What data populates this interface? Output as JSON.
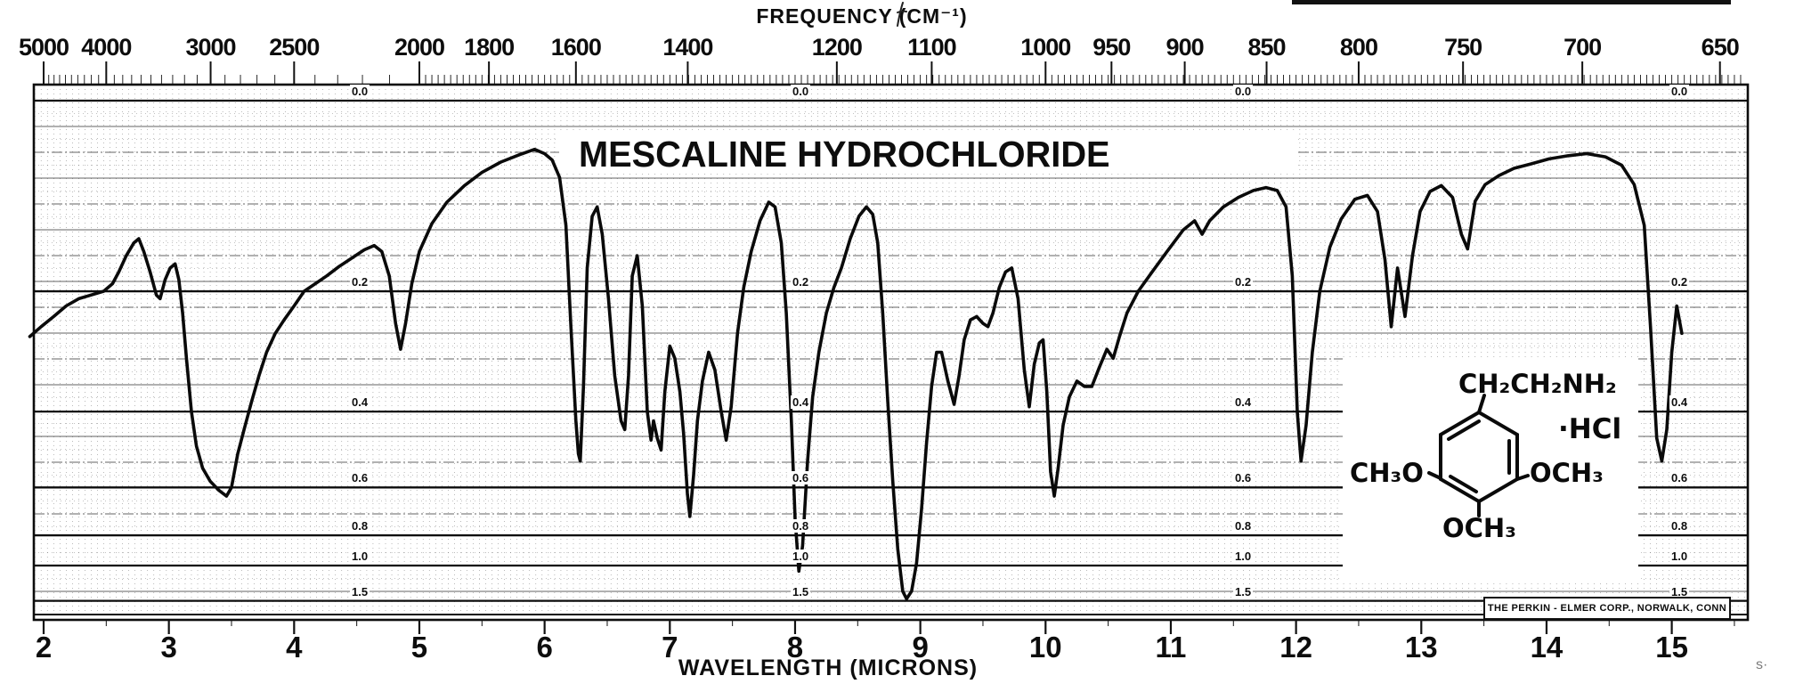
{
  "title": "MESCALINE HYDROCHLORIDE",
  "credit": "THE PERKIN - ELMER CORP., NORWALK, CONN",
  "frequency_axis": {
    "title": "FREQUENCY (CM⁻¹)",
    "tick_labels": [
      5000,
      4000,
      3000,
      2500,
      2000,
      1800,
      1600,
      1400,
      1200,
      1100,
      1000,
      950,
      900,
      850,
      800,
      750,
      700,
      650
    ]
  },
  "wavelength_axis": {
    "title": "WAVELENGTH (MICRONS)",
    "tick_labels": [
      2,
      3,
      4,
      5,
      6,
      7,
      8,
      9,
      10,
      11,
      12,
      13,
      14,
      15
    ]
  },
  "absorbance_axis": {
    "tick_labels": [
      "0.0",
      "0.2",
      "0.4",
      "0.6",
      "0.8",
      "1.0",
      "1.5"
    ]
  },
  "structure": {
    "chain": "CH₂CH₂NH₂",
    "salt": "·HCl",
    "left_substituent": "CH₃O",
    "right_substituent": "OCH₃",
    "bottom_substituent": "OCH₃"
  },
  "chart_data": {
    "type": "line",
    "title": "MESCALINE HYDROCHLORIDE",
    "x_top_axis": {
      "label": "FREQUENCY (CM⁻¹)",
      "tick_labels": [
        5000,
        4000,
        3000,
        2500,
        2000,
        1800,
        1600,
        1400,
        1200,
        1100,
        1000,
        950,
        900,
        850,
        800,
        750,
        700,
        650
      ]
    },
    "x_bottom_axis": {
      "label": "WAVELENGTH (MICRONS)",
      "range_microns": [
        1.9,
        15.6
      ],
      "tick_labels": [
        2,
        3,
        4,
        5,
        6,
        7,
        8,
        9,
        10,
        11,
        12,
        13,
        14,
        15
      ]
    },
    "y_axis": {
      "quantity": "absorbance",
      "labels_top_to_bottom": [
        "0.0",
        "0.2",
        "0.4",
        "0.6",
        "0.8",
        "1.0",
        "1.5"
      ],
      "scale": "linear-in-transmittance",
      "grid": true
    },
    "legend": "none",
    "series": [
      {
        "name": "IR absorption trace",
        "points_microns_absorbance": [
          [
            1.89,
            0.265
          ],
          [
            1.98,
            0.25
          ],
          [
            2.08,
            0.235
          ],
          [
            2.18,
            0.22
          ],
          [
            2.28,
            0.21
          ],
          [
            2.38,
            0.205
          ],
          [
            2.48,
            0.2
          ],
          [
            2.55,
            0.19
          ],
          [
            2.6,
            0.175
          ],
          [
            2.66,
            0.155
          ],
          [
            2.72,
            0.14
          ],
          [
            2.76,
            0.135
          ],
          [
            2.8,
            0.15
          ],
          [
            2.85,
            0.175
          ],
          [
            2.9,
            0.205
          ],
          [
            2.93,
            0.21
          ],
          [
            2.97,
            0.185
          ],
          [
            3.01,
            0.17
          ],
          [
            3.05,
            0.165
          ],
          [
            3.08,
            0.185
          ],
          [
            3.11,
            0.23
          ],
          [
            3.14,
            0.3
          ],
          [
            3.18,
            0.4
          ],
          [
            3.22,
            0.48
          ],
          [
            3.27,
            0.54
          ],
          [
            3.33,
            0.58
          ],
          [
            3.4,
            0.61
          ],
          [
            3.46,
            0.63
          ],
          [
            3.5,
            0.6
          ],
          [
            3.55,
            0.5
          ],
          [
            3.6,
            0.44
          ],
          [
            3.66,
            0.38
          ],
          [
            3.72,
            0.33
          ],
          [
            3.78,
            0.29
          ],
          [
            3.85,
            0.26
          ],
          [
            3.92,
            0.24
          ],
          [
            4.0,
            0.22
          ],
          [
            4.08,
            0.2
          ],
          [
            4.17,
            0.19
          ],
          [
            4.26,
            0.18
          ],
          [
            4.36,
            0.168
          ],
          [
            4.46,
            0.158
          ],
          [
            4.56,
            0.148
          ],
          [
            4.64,
            0.143
          ],
          [
            4.7,
            0.15
          ],
          [
            4.76,
            0.18
          ],
          [
            4.81,
            0.245
          ],
          [
            4.85,
            0.285
          ],
          [
            4.89,
            0.245
          ],
          [
            4.94,
            0.19
          ],
          [
            5.0,
            0.15
          ],
          [
            5.1,
            0.118
          ],
          [
            5.22,
            0.095
          ],
          [
            5.36,
            0.078
          ],
          [
            5.5,
            0.065
          ],
          [
            5.65,
            0.055
          ],
          [
            5.8,
            0.048
          ],
          [
            5.92,
            0.043
          ],
          [
            6.0,
            0.047
          ],
          [
            6.06,
            0.053
          ],
          [
            6.12,
            0.07
          ],
          [
            6.17,
            0.12
          ],
          [
            6.21,
            0.25
          ],
          [
            6.25,
            0.42
          ],
          [
            6.27,
            0.5
          ],
          [
            6.285,
            0.52
          ],
          [
            6.31,
            0.35
          ],
          [
            6.34,
            0.17
          ],
          [
            6.38,
            0.11
          ],
          [
            6.42,
            0.1
          ],
          [
            6.46,
            0.13
          ],
          [
            6.51,
            0.21
          ],
          [
            6.56,
            0.33
          ],
          [
            6.61,
            0.42
          ],
          [
            6.64,
            0.44
          ],
          [
            6.67,
            0.33
          ],
          [
            6.7,
            0.18
          ],
          [
            6.74,
            0.155
          ],
          [
            6.78,
            0.22
          ],
          [
            6.82,
            0.4
          ],
          [
            6.85,
            0.465
          ],
          [
            6.87,
            0.42
          ],
          [
            6.9,
            0.46
          ],
          [
            6.93,
            0.49
          ],
          [
            6.96,
            0.36
          ],
          [
            7.0,
            0.28
          ],
          [
            7.04,
            0.3
          ],
          [
            7.08,
            0.36
          ],
          [
            7.11,
            0.45
          ],
          [
            7.14,
            0.62
          ],
          [
            7.16,
            0.71
          ],
          [
            7.19,
            0.56
          ],
          [
            7.22,
            0.42
          ],
          [
            7.26,
            0.34
          ],
          [
            7.31,
            0.29
          ],
          [
            7.36,
            0.32
          ],
          [
            7.41,
            0.4
          ],
          [
            7.45,
            0.465
          ],
          [
            7.49,
            0.39
          ],
          [
            7.54,
            0.26
          ],
          [
            7.59,
            0.195
          ],
          [
            7.65,
            0.15
          ],
          [
            7.72,
            0.115
          ],
          [
            7.79,
            0.095
          ],
          [
            7.84,
            0.1
          ],
          [
            7.89,
            0.14
          ],
          [
            7.93,
            0.23
          ],
          [
            7.97,
            0.42
          ],
          [
            8.0,
            0.72
          ],
          [
            8.03,
            1.05
          ],
          [
            8.06,
            0.86
          ],
          [
            8.1,
            0.52
          ],
          [
            8.14,
            0.37
          ],
          [
            8.19,
            0.29
          ],
          [
            8.25,
            0.23
          ],
          [
            8.31,
            0.195
          ],
          [
            8.37,
            0.17
          ],
          [
            8.44,
            0.135
          ],
          [
            8.51,
            0.11
          ],
          [
            8.57,
            0.1
          ],
          [
            8.62,
            0.108
          ],
          [
            8.66,
            0.14
          ],
          [
            8.7,
            0.23
          ],
          [
            8.74,
            0.38
          ],
          [
            8.78,
            0.58
          ],
          [
            8.82,
            0.88
          ],
          [
            8.86,
            1.3
          ],
          [
            8.89,
            1.45
          ],
          [
            8.93,
            1.3
          ],
          [
            8.97,
            0.98
          ],
          [
            9.01,
            0.68
          ],
          [
            9.05,
            0.47
          ],
          [
            9.09,
            0.35
          ],
          [
            9.13,
            0.29
          ],
          [
            9.17,
            0.29
          ],
          [
            9.22,
            0.34
          ],
          [
            9.27,
            0.385
          ],
          [
            9.31,
            0.33
          ],
          [
            9.35,
            0.27
          ],
          [
            9.4,
            0.24
          ],
          [
            9.45,
            0.235
          ],
          [
            9.5,
            0.245
          ],
          [
            9.54,
            0.25
          ],
          [
            9.58,
            0.23
          ],
          [
            9.63,
            0.195
          ],
          [
            9.68,
            0.175
          ],
          [
            9.73,
            0.17
          ],
          [
            9.78,
            0.21
          ],
          [
            9.83,
            0.32
          ],
          [
            9.87,
            0.39
          ],
          [
            9.91,
            0.31
          ],
          [
            9.95,
            0.275
          ],
          [
            9.98,
            0.27
          ],
          [
            10.01,
            0.36
          ],
          [
            10.04,
            0.55
          ],
          [
            10.07,
            0.63
          ],
          [
            10.1,
            0.54
          ],
          [
            10.14,
            0.43
          ],
          [
            10.19,
            0.37
          ],
          [
            10.25,
            0.34
          ],
          [
            10.31,
            0.35
          ],
          [
            10.37,
            0.35
          ],
          [
            10.43,
            0.315
          ],
          [
            10.49,
            0.285
          ],
          [
            10.54,
            0.3
          ],
          [
            10.59,
            0.265
          ],
          [
            10.65,
            0.23
          ],
          [
            10.74,
            0.2
          ],
          [
            10.85,
            0.175
          ],
          [
            10.97,
            0.15
          ],
          [
            11.1,
            0.125
          ],
          [
            11.19,
            0.115
          ],
          [
            11.25,
            0.13
          ],
          [
            11.31,
            0.115
          ],
          [
            11.42,
            0.1
          ],
          [
            11.54,
            0.09
          ],
          [
            11.66,
            0.083
          ],
          [
            11.76,
            0.08
          ],
          [
            11.85,
            0.083
          ],
          [
            11.92,
            0.1
          ],
          [
            11.97,
            0.18
          ],
          [
            12.01,
            0.4
          ],
          [
            12.04,
            0.52
          ],
          [
            12.08,
            0.43
          ],
          [
            12.13,
            0.29
          ],
          [
            12.19,
            0.2
          ],
          [
            12.27,
            0.145
          ],
          [
            12.36,
            0.113
          ],
          [
            12.47,
            0.092
          ],
          [
            12.57,
            0.088
          ],
          [
            12.65,
            0.105
          ],
          [
            12.71,
            0.16
          ],
          [
            12.76,
            0.25
          ],
          [
            12.81,
            0.17
          ],
          [
            12.87,
            0.235
          ],
          [
            12.93,
            0.155
          ],
          [
            12.99,
            0.105
          ],
          [
            13.07,
            0.084
          ],
          [
            13.16,
            0.078
          ],
          [
            13.25,
            0.09
          ],
          [
            13.32,
            0.13
          ],
          [
            13.37,
            0.147
          ],
          [
            13.43,
            0.094
          ],
          [
            13.51,
            0.077
          ],
          [
            13.62,
            0.068
          ],
          [
            13.74,
            0.061
          ],
          [
            13.87,
            0.057
          ],
          [
            14.02,
            0.052
          ],
          [
            14.17,
            0.049
          ],
          [
            14.32,
            0.047
          ],
          [
            14.47,
            0.05
          ],
          [
            14.6,
            0.058
          ],
          [
            14.7,
            0.077
          ],
          [
            14.78,
            0.12
          ],
          [
            14.83,
            0.25
          ],
          [
            14.88,
            0.46
          ],
          [
            14.92,
            0.52
          ],
          [
            14.96,
            0.44
          ],
          [
            15.0,
            0.29
          ],
          [
            15.04,
            0.22
          ],
          [
            15.08,
            0.26
          ]
        ]
      }
    ],
    "peaks_cm1": [
      {
        "cm1": 2890,
        "absorbance": 0.63
      },
      {
        "cm1": 2065,
        "absorbance": 0.285
      },
      {
        "cm1": 1595,
        "absorbance": 0.52
      },
      {
        "cm1": 1510,
        "absorbance": 0.44
      },
      {
        "cm1": 1462,
        "absorbance": 0.465
      },
      {
        "cm1": 1443,
        "absorbance": 0.49
      },
      {
        "cm1": 1399,
        "absorbance": 0.71
      },
      {
        "cm1": 1342,
        "absorbance": 0.465
      },
      {
        "cm1": 1245,
        "absorbance": 1.05
      },
      {
        "cm1": 1126,
        "absorbance": 1.45
      },
      {
        "cm1": 1079,
        "absorbance": 0.385
      },
      {
        "cm1": 1013,
        "absorbance": 0.39
      },
      {
        "cm1": 993,
        "absorbance": 0.63
      },
      {
        "cm1": 965,
        "absorbance": 0.35
      },
      {
        "cm1": 943,
        "absorbance": 0.3
      },
      {
        "cm1": 889,
        "absorbance": 0.13
      },
      {
        "cm1": 831,
        "absorbance": 0.52
      },
      {
        "cm1": 784,
        "absorbance": 0.25
      },
      {
        "cm1": 777,
        "absorbance": 0.235
      },
      {
        "cm1": 748,
        "absorbance": 0.147
      },
      {
        "cm1": 670,
        "absorbance": 0.52
      }
    ]
  }
}
